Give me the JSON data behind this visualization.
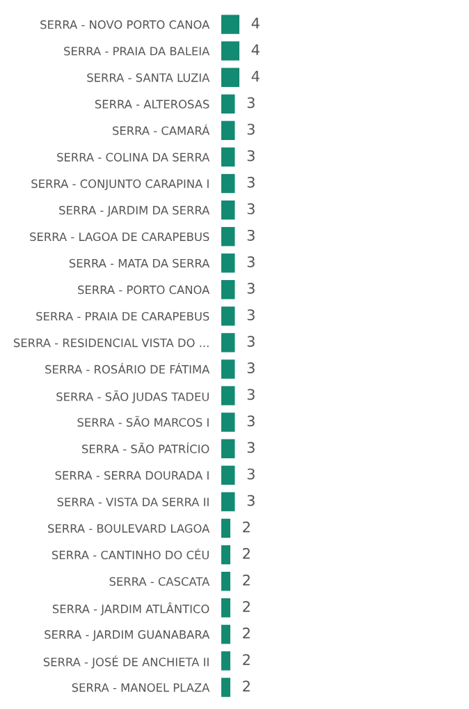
{
  "chart_data": {
    "type": "bar",
    "orientation": "horizontal",
    "data_labels": true,
    "color": "#138a72",
    "categories": [
      "SERRA - NOVO PORTO CANOA",
      "SERRA - PRAIA DA BALEIA",
      "SERRA - SANTA LUZIA",
      "SERRA - ALTEROSAS",
      "SERRA - CAMARÁ",
      "SERRA - COLINA DA SERRA",
      "SERRA - CONJUNTO CARAPINA I",
      "SERRA - JARDIM DA SERRA",
      "SERRA - LAGOA DE CARAPEBUS",
      "SERRA - MATA DA SERRA",
      "SERRA - PORTO CANOA",
      "SERRA - PRAIA DE CARAPEBUS",
      "SERRA - RESIDENCIAL VISTA DO ...",
      "SERRA - ROSÁRIO DE FÁTIMA",
      "SERRA - SÃO JUDAS TADEU",
      "SERRA - SÃO MARCOS I",
      "SERRA - SÃO PATRÍCIO",
      "SERRA - SERRA DOURADA I",
      "SERRA - VISTA DA SERRA II",
      "SERRA - BOULEVARD LAGOA",
      "SERRA - CANTINHO DO CÉU",
      "SERRA - CASCATA",
      "SERRA - JARDIM ATLÂNTICO",
      "SERRA - JARDIM GUANABARA",
      "SERRA - JOSÉ DE ANCHIETA II",
      "SERRA - MANOEL PLAZA"
    ],
    "values": [
      4,
      4,
      4,
      3,
      3,
      3,
      3,
      3,
      3,
      3,
      3,
      3,
      3,
      3,
      3,
      3,
      3,
      3,
      3,
      2,
      2,
      2,
      2,
      2,
      2,
      2
    ]
  }
}
